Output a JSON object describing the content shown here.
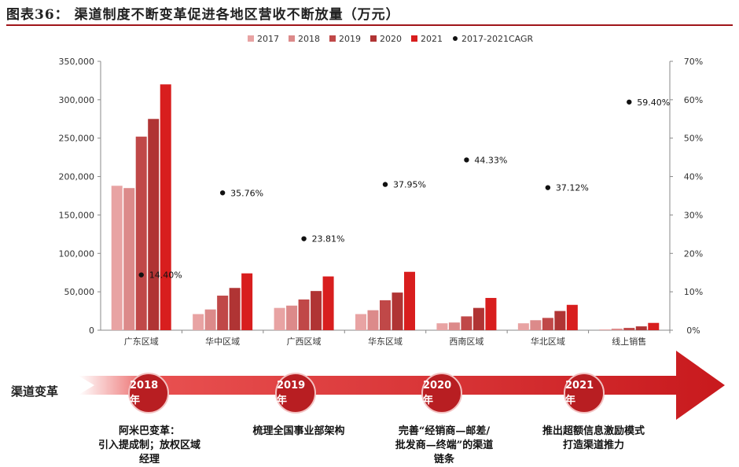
{
  "title": "图表36：  渠道制度不断变革促进各地区营收不断放量（万元）",
  "colors": {
    "2017": "#e8a3a3",
    "2018": "#dc8a8a",
    "2019": "#c04848",
    "2020": "#b03434",
    "2021": "#d81e1e",
    "cagr": "#111111",
    "rule": "#a0151a",
    "arrow": "#c8191d"
  },
  "chart_data": {
    "type": "bar",
    "title": "渠道制度不断变革促进各地区营收不断放量（万元）",
    "categories": [
      "广东区域",
      "华中区域",
      "广西区域",
      "华东区域",
      "西南区域",
      "华北区域",
      "线上销售"
    ],
    "series": [
      {
        "name": "2017",
        "values": [
          188000,
          21000,
          29000,
          21000,
          9000,
          9000,
          1000
        ]
      },
      {
        "name": "2018",
        "values": [
          185000,
          27000,
          32000,
          26000,
          10000,
          13000,
          2000
        ]
      },
      {
        "name": "2019",
        "values": [
          252000,
          45000,
          40000,
          39000,
          18000,
          16000,
          3000
        ]
      },
      {
        "name": "2020",
        "values": [
          275000,
          55000,
          51000,
          49000,
          29000,
          25000,
          5000
        ]
      },
      {
        "name": "2021",
        "values": [
          320000,
          74000,
          70000,
          76000,
          42000,
          33000,
          9500
        ]
      }
    ],
    "cagr": {
      "name": "2017-2021CAGR",
      "values": [
        14.4,
        35.76,
        23.81,
        37.95,
        44.33,
        37.12,
        59.4
      ],
      "labels": [
        "14.40%",
        "35.76%",
        "23.81%",
        "37.95%",
        "44.33%",
        "37.12%",
        "59.40%"
      ]
    },
    "ylim": [
      0,
      350000
    ],
    "y_ticks": [
      "0",
      "50,000",
      "100,000",
      "150,000",
      "200,000",
      "250,000",
      "300,000",
      "350,000"
    ],
    "y2lim": [
      0,
      70
    ],
    "y2_ticks": [
      "0%",
      "10%",
      "20%",
      "30%",
      "40%",
      "50%",
      "60%",
      "70%"
    ],
    "legend": [
      "2017",
      "2018",
      "2019",
      "2020",
      "2021",
      "2017-2021CAGR"
    ],
    "legend_position": "top"
  },
  "timeline": {
    "label": "渠道变革",
    "years": [
      "2018年",
      "2019年",
      "2020年",
      "2021年"
    ],
    "events": [
      [
        "阿米巴变革：",
        "引入提成制；放权区域",
        "经理"
      ],
      [
        "梳理全国事业部架构"
      ],
      [
        "完善“经销商—邮差/",
        "批发商—终端”的渠道",
        "链条"
      ],
      [
        "推出超额信息激励模式",
        "打造渠道推力"
      ]
    ]
  }
}
